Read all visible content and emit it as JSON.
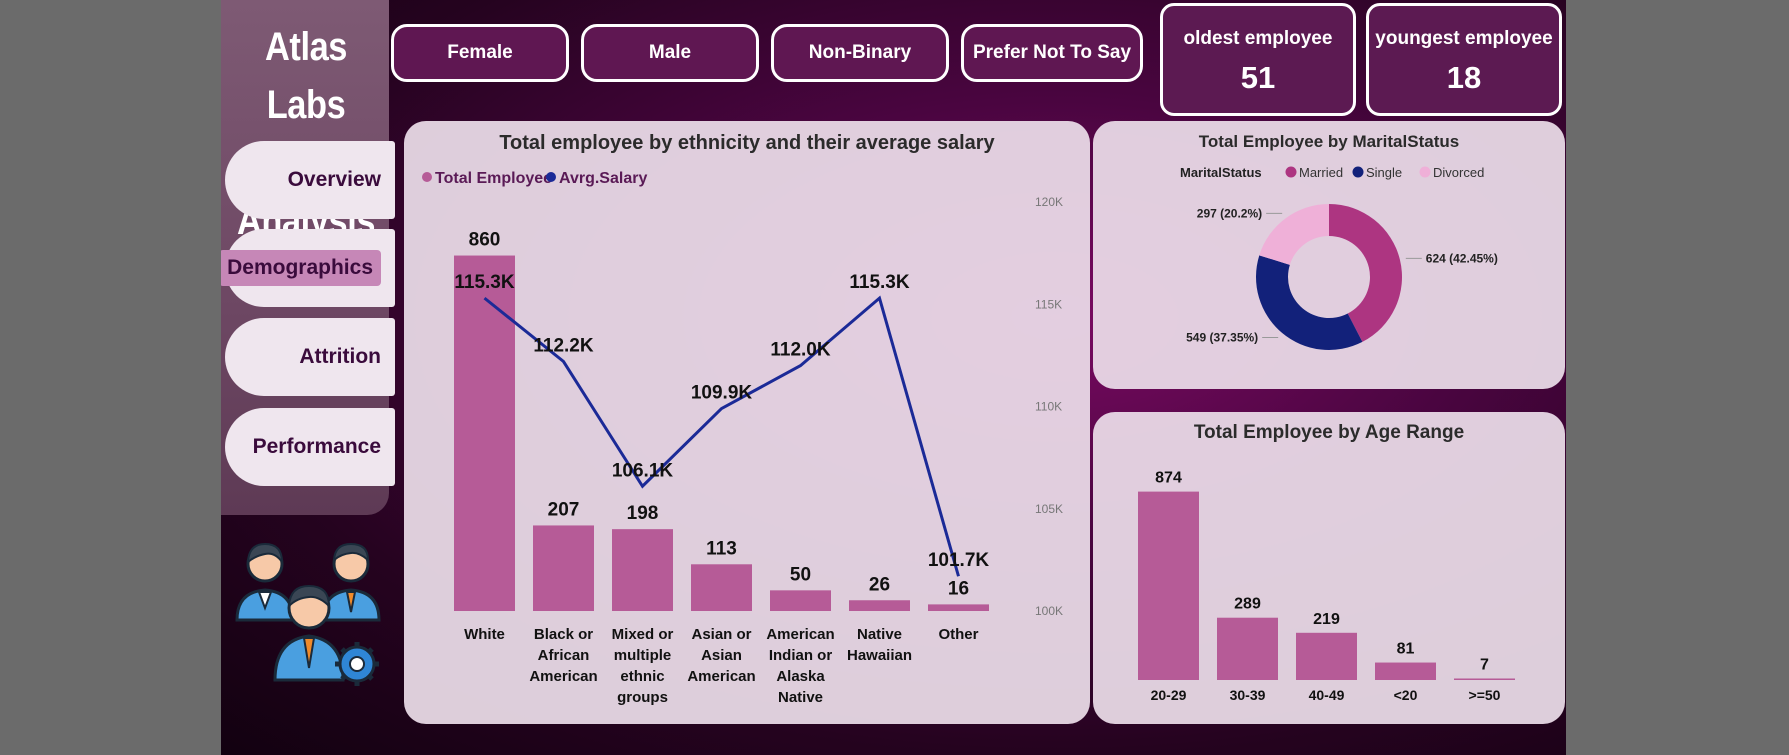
{
  "brand": {
    "line1": "Atlas Labs",
    "line2": "HR Analysis"
  },
  "nav": {
    "items": [
      {
        "label": "Overview"
      },
      {
        "label": "Demographics",
        "active": true
      },
      {
        "label": "Attrition"
      },
      {
        "label": "Performance"
      }
    ]
  },
  "gender_filters": [
    "Female",
    "Male",
    "Non-Binary",
    "Prefer Not To Say"
  ],
  "kpis": {
    "oldest": {
      "label": "oldest employee",
      "value": "51"
    },
    "youngest": {
      "label": "youngest employee",
      "value": "18"
    }
  },
  "colors": {
    "bar": "#b65b97",
    "line": "#1b2a97",
    "married": "#ad3581",
    "single": "#12217a",
    "divorced": "#efb0d8"
  },
  "chart_data": [
    {
      "type": "bar",
      "title": "Total employee by ethnicity and their average salary",
      "legend": [
        "Total Employee",
        "Avrg.Salary"
      ],
      "categories": [
        [
          "White"
        ],
        [
          "Black or",
          "African",
          "American"
        ],
        [
          "Mixed or",
          "multiple",
          "ethnic",
          "groups"
        ],
        [
          "Asian or",
          "Asian",
          "American"
        ],
        [
          "American",
          "Indian or",
          "Alaska",
          "Native"
        ],
        [
          "Native",
          "Hawaiian"
        ],
        [
          "Other"
        ]
      ],
      "series": [
        {
          "name": "Total Employee",
          "values": [
            860,
            207,
            198,
            113,
            50,
            26,
            16
          ],
          "labels": [
            "860",
            "207",
            "198",
            "113",
            "50",
            "26",
            "16"
          ]
        },
        {
          "name": "Avrg.Salary",
          "axis": "secondary",
          "values": [
            115300,
            112200,
            106100,
            109900,
            112000,
            115300,
            101700
          ],
          "labels": [
            "115.3K",
            "112.2K",
            "106.1K",
            "109.9K",
            "112.0K",
            "115.3K",
            "101.7K"
          ]
        }
      ],
      "y2_ticks": [
        "120K",
        "115K",
        "110K",
        "105K",
        "100K"
      ],
      "y2lim": [
        100000,
        120000
      ],
      "ylim": [
        0,
        900
      ]
    },
    {
      "type": "pie",
      "title": "Total Employee by MaritalStatus",
      "legend_title": "MaritalStatus",
      "slices": [
        {
          "name": "Married",
          "value": 624,
          "label": "624 (42.45%)"
        },
        {
          "name": "Single",
          "value": 549,
          "label": "549 (37.35%)"
        },
        {
          "name": "Divorced",
          "value": 297,
          "label": "297 (20.2%)"
        }
      ]
    },
    {
      "type": "bar",
      "title": "Total Employee by Age Range",
      "categories": [
        "20-29",
        "30-39",
        "40-49",
        "<20",
        ">=50"
      ],
      "values": [
        874,
        289,
        219,
        81,
        7
      ],
      "labels": [
        "874",
        "289",
        "219",
        "81",
        "7"
      ],
      "ylim": [
        0,
        900
      ]
    }
  ]
}
